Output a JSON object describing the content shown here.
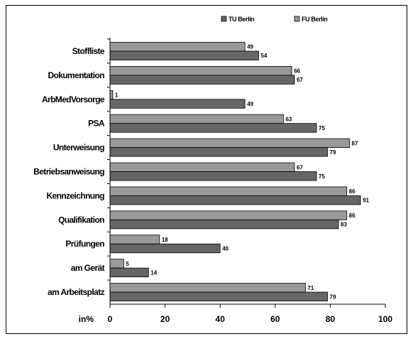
{
  "chart_data": {
    "type": "bar",
    "orientation": "horizontal",
    "categories": [
      "Stoffliste",
      "Dokumentation",
      "ArbMedVorsorge",
      "PSA",
      "Unterweisung",
      "Betriebsanweisung",
      "Kennzeichnung",
      "Qualifikation",
      "Prüfungen",
      "am Gerät",
      "am Arbeitsplatz"
    ],
    "series": [
      {
        "name": "FU Berlin",
        "color": "#999999",
        "values": [
          49,
          66,
          1,
          63,
          87,
          67,
          86,
          86,
          18,
          5,
          71
        ]
      },
      {
        "name": "TU Berlin",
        "color": "#666666",
        "values": [
          54,
          67,
          49,
          75,
          79,
          75,
          91,
          83,
          40,
          14,
          79
        ]
      }
    ],
    "legend_order": [
      "TU Berlin",
      "FU Berlin"
    ],
    "legend_position": "top",
    "xlabel": "in%",
    "xlim": [
      0,
      100
    ],
    "xticks": [
      0,
      20,
      40,
      60,
      80,
      100
    ],
    "grid": false,
    "data_labels": true
  }
}
